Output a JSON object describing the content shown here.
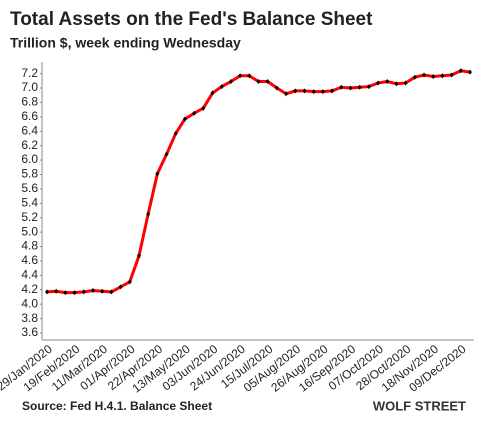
{
  "chart_data": {
    "type": "line",
    "title": "Total Assets on the Fed's Balance Sheet",
    "subtitle": "Trillion $, week ending Wednesday",
    "source": "Source: Fed H.4.1. Balance Sheet",
    "brand": "WOLF STREET",
    "categories": [
      "29/Jan/2020",
      null,
      null,
      "19/Feb/2020",
      null,
      null,
      "11/Mar/2020",
      null,
      null,
      "01/Apr/2020",
      null,
      null,
      "22/Apr/2020",
      null,
      null,
      "13/May/2020",
      null,
      null,
      "03/Jun/2020",
      null,
      null,
      "24/Jun/2020",
      null,
      null,
      "15/Jul/2020",
      null,
      null,
      "05/Aug/2020",
      null,
      null,
      "26/Aug/2020",
      null,
      null,
      "16/Sep/2020",
      null,
      null,
      "07/Oct/2020",
      null,
      null,
      "28/Oct/2020",
      null,
      null,
      "18/Nov/2020",
      null,
      null,
      "09/Dec/2020",
      null
    ],
    "series": [
      {
        "name": "Total Assets",
        "color": "#ff0000",
        "marker_color": "#000000",
        "values": [
          4.17,
          4.18,
          4.16,
          4.16,
          4.17,
          4.19,
          4.18,
          4.17,
          4.24,
          4.31,
          4.67,
          5.25,
          5.81,
          6.08,
          6.37,
          6.57,
          6.65,
          6.72,
          6.93,
          7.02,
          7.09,
          7.17,
          7.17,
          7.09,
          7.09,
          7.0,
          6.92,
          6.96,
          6.96,
          6.95,
          6.95,
          6.96,
          7.01,
          7.0,
          7.01,
          7.02,
          7.07,
          7.09,
          7.06,
          7.07,
          7.15,
          7.18,
          7.16,
          7.17,
          7.18,
          7.24,
          7.22
        ]
      }
    ],
    "ylim": [
      3.6,
      7.25
    ],
    "yticks": [
      {
        "value": 3.6,
        "label": "3.6"
      },
      {
        "value": 3.8,
        "label": "3.8"
      },
      {
        "value": 4.0,
        "label": "4.0"
      },
      {
        "value": 4.2,
        "label": "4.2"
      },
      {
        "value": 4.4,
        "label": "4.4"
      },
      {
        "value": 4.6,
        "label": "4.6"
      },
      {
        "value": 4.8,
        "label": "4.8"
      },
      {
        "value": 5.0,
        "label": "5.0"
      },
      {
        "value": 5.2,
        "label": "5.2"
      },
      {
        "value": 5.4,
        "label": "5.4"
      },
      {
        "value": 5.6,
        "label": "5.6"
      },
      {
        "value": 5.8,
        "label": "5.8"
      },
      {
        "value": 6.0,
        "label": "6.0"
      },
      {
        "value": 6.2,
        "label": "6.2"
      },
      {
        "value": 6.4,
        "label": "6.4"
      },
      {
        "value": 6.6,
        "label": "6.6"
      },
      {
        "value": 6.8,
        "label": "6.8"
      },
      {
        "value": 7.0,
        "label": "7.0"
      },
      {
        "value": 7.2,
        "label": "7.2"
      }
    ],
    "grid": false
  }
}
